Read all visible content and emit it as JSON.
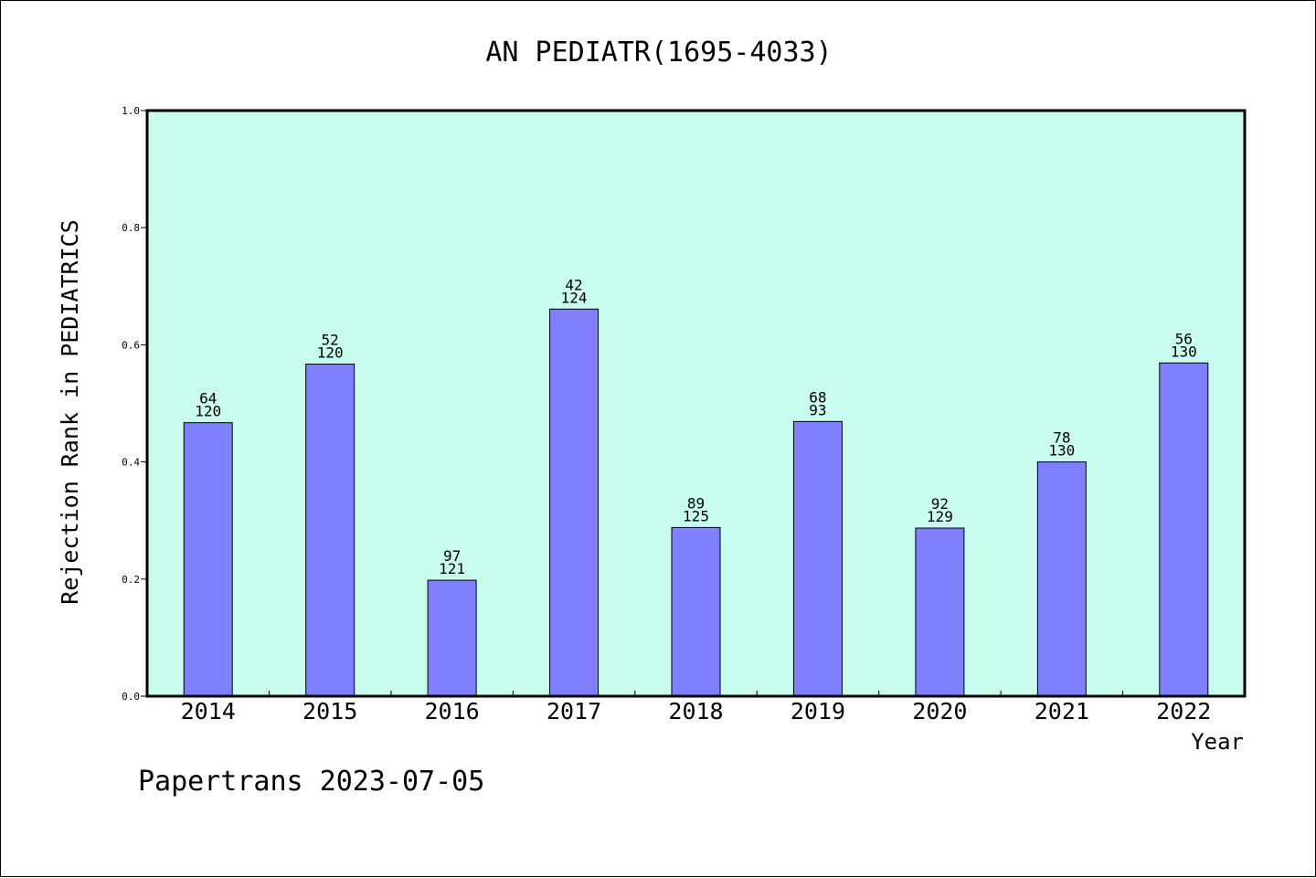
{
  "chart_data": {
    "type": "bar",
    "title": "AN PEDIATR(1695-4033)",
    "xlabel": "Year",
    "ylabel": "Rejection Rank in PEDIATRICS",
    "ylim": [
      0,
      1.0
    ],
    "yticks": [
      "0.0",
      "0.2",
      "0.4",
      "0.6",
      "0.8",
      "1.0"
    ],
    "grid": false,
    "categories": [
      "2014",
      "2015",
      "2016",
      "2017",
      "2018",
      "2019",
      "2020",
      "2021",
      "2022"
    ],
    "values": [
      0.467,
      0.567,
      0.198,
      0.661,
      0.288,
      0.469,
      0.287,
      0.4,
      0.569
    ],
    "rank": [
      "64",
      "52",
      "97",
      "42",
      "89",
      "68",
      "92",
      "78",
      "56"
    ],
    "total": [
      "120",
      "120",
      "121",
      "124",
      "125",
      "93",
      "129",
      "130",
      "130"
    ],
    "colors": {
      "bar": "#8080ff",
      "plot_background": "#c8fcee"
    }
  },
  "footer": {
    "text": "Papertrans 2023-07-05"
  }
}
